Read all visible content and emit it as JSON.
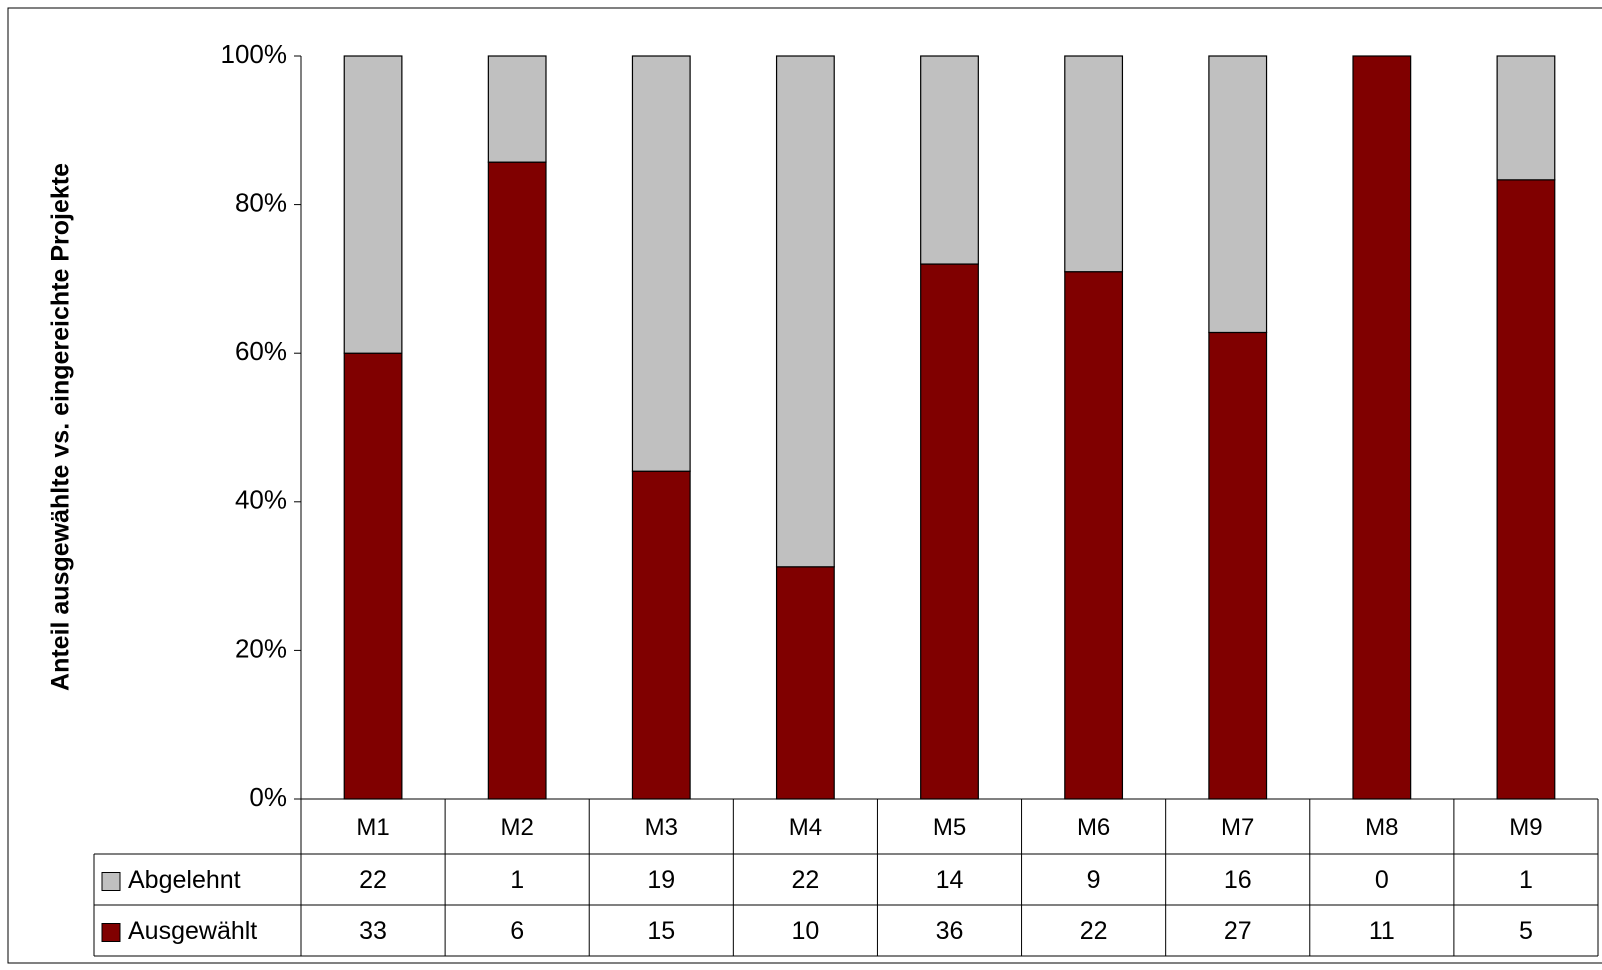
{
  "chart_data": {
    "type": "bar100",
    "y_label": "Anteil ausgewählte vs. eingereichte Projekte",
    "categories": [
      "M1",
      "M2",
      "M3",
      "M4",
      "M5",
      "M6",
      "M7",
      "M8",
      "M9"
    ],
    "series": [
      {
        "name": "Abgelehnt",
        "color": "#c0c0c0",
        "values": [
          22,
          1,
          19,
          22,
          14,
          9,
          16,
          0,
          1
        ]
      },
      {
        "name": "Ausgewählt",
        "color": "#800000",
        "values": [
          33,
          6,
          15,
          10,
          36,
          22,
          27,
          11,
          5
        ]
      }
    ],
    "ylim": [
      0,
      100
    ],
    "yticks": [
      {
        "value": 0,
        "label": "0%"
      },
      {
        "value": 20,
        "label": "20%"
      },
      {
        "value": 40,
        "label": "40%"
      },
      {
        "value": 60,
        "label": "60%"
      },
      {
        "value": 80,
        "label": "80%"
      },
      {
        "value": 100,
        "label": "100%"
      }
    ],
    "grid": false
  }
}
